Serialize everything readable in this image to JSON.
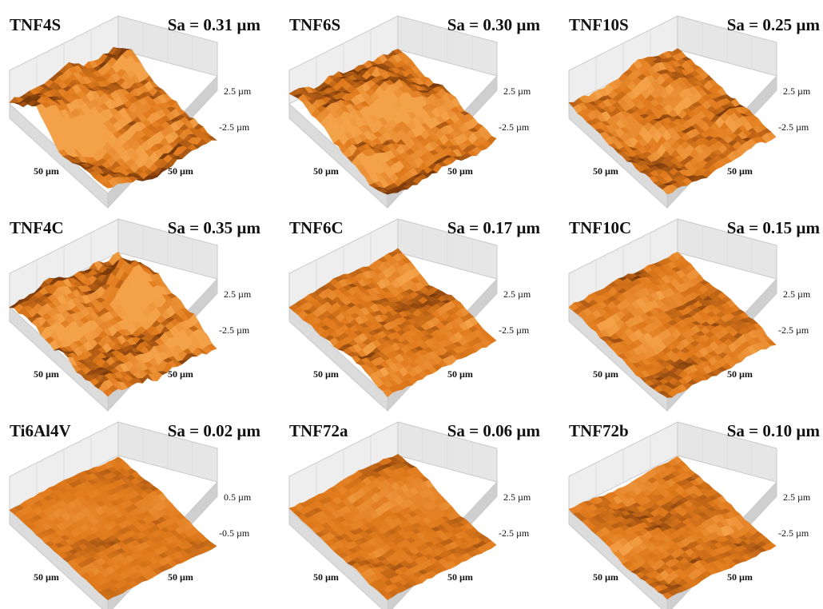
{
  "figure": {
    "panels": [
      {
        "label": "TNF4S",
        "sa": "Sa = 0.31 µm",
        "z_top": "2.5 µm",
        "z_bottom": "-2.5 µm",
        "x_label": "50 µm",
        "y_label": "50 µm",
        "roughness": 0.31
      },
      {
        "label": "TNF6S",
        "sa": "Sa = 0.30 µm",
        "z_top": "2.5 µm",
        "z_bottom": "-2.5 µm",
        "x_label": "50 µm",
        "y_label": "50 µm",
        "roughness": 0.3
      },
      {
        "label": "TNF10S",
        "sa": "Sa = 0.25 µm",
        "z_top": "2.5 µm",
        "z_bottom": "-2.5 µm",
        "x_label": "50 µm",
        "y_label": "50 µm",
        "roughness": 0.25
      },
      {
        "label": "TNF4C",
        "sa": "Sa = 0.35 µm",
        "z_top": "2.5 µm",
        "z_bottom": "-2.5 µm",
        "x_label": "50 µm",
        "y_label": "50 µm",
        "roughness": 0.35
      },
      {
        "label": "TNF6C",
        "sa": "Sa = 0.17 µm",
        "z_top": "2.5 µm",
        "z_bottom": "-2.5 µm",
        "x_label": "50 µm",
        "y_label": "50 µm",
        "roughness": 0.17
      },
      {
        "label": "TNF10C",
        "sa": "Sa = 0.15 µm",
        "z_top": "2.5 µm",
        "z_bottom": "-2.5 µm",
        "x_label": "50 µm",
        "y_label": "50 µm",
        "roughness": 0.15
      },
      {
        "label": "Ti6Al4V",
        "sa": "Sa = 0.02 µm",
        "z_top": "0.5 µm",
        "z_bottom": "-0.5 µm",
        "x_label": "50 µm",
        "y_label": "50 µm",
        "roughness": 0.02
      },
      {
        "label": "TNF72a",
        "sa": "Sa = 0.06 µm",
        "z_top": "2.5 µm",
        "z_bottom": "-2.5 µm",
        "x_label": "50 µm",
        "y_label": "50 µm",
        "roughness": 0.06
      },
      {
        "label": "TNF72b",
        "sa": "Sa = 0.10 µm",
        "z_top": "2.5 µm",
        "z_bottom": "-2.5 µm",
        "x_label": "50 µm",
        "y_label": "50 µm",
        "roughness": 0.1
      }
    ],
    "colors": {
      "surface_light": "#f4a24a",
      "surface_mid": "#e07a1c",
      "surface_dark": "#7a3a0c",
      "box_fill": "#eeeeee",
      "box_line": "#c9c9c9",
      "text": "#111111"
    }
  }
}
